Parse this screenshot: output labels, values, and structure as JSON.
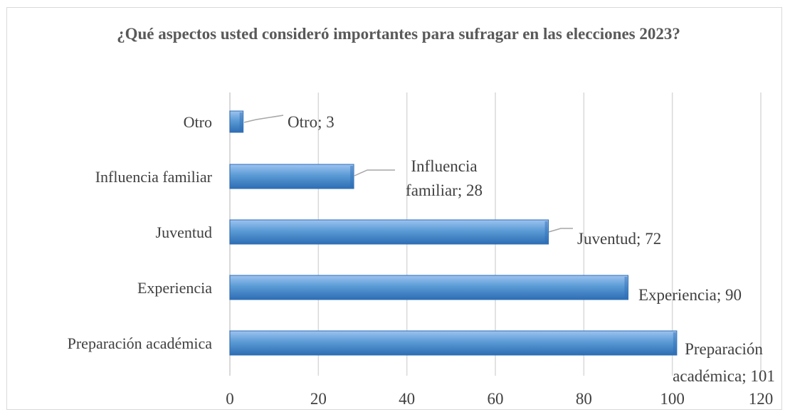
{
  "chart_data": {
    "type": "bar",
    "orientation": "horizontal",
    "title": "¿Qué aspectos usted consideró importantes para sufragar en las elecciones 2023?",
    "categories": [
      "Otro",
      "Influencia familiar",
      "Juventud",
      "Experiencia",
      "Preparación académica"
    ],
    "values": [
      3,
      28,
      72,
      90,
      101
    ],
    "data_labels": [
      [
        "Otro; 3"
      ],
      [
        "Influencia",
        "familiar; 28"
      ],
      [
        "Juventud; 72"
      ],
      [
        "Experiencia; 90"
      ],
      [
        "Preparación",
        "académica; 101"
      ]
    ],
    "xlim": [
      0,
      120
    ],
    "xticks": [
      0,
      20,
      40,
      60,
      80,
      100,
      120
    ],
    "xlabel": "",
    "ylabel": "",
    "grid": true,
    "legend": "none",
    "colors": {
      "bar_light": "#9dc3f0",
      "bar_mid": "#5b9bd5",
      "bar_dark": "#2e6db4",
      "grid": "#d9d9d9",
      "text": "#404040",
      "leader": "#a6a6a6"
    }
  }
}
